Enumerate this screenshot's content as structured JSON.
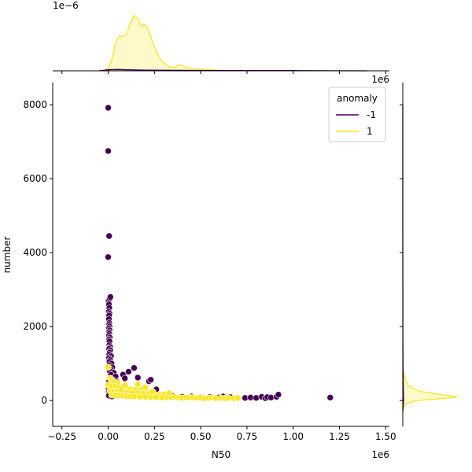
{
  "chart_data": {
    "type": "scatter",
    "xlabel": "N50",
    "ylabel": "number",
    "x_multiplier_label": "1e6",
    "marginal_top_multiplier_label": "1e−6",
    "marginal_right_multiplier_label": "1e6",
    "xlim": [
      -0.3,
      1.52
    ],
    "ylim": [
      -700,
      8600
    ],
    "x_ticks": [
      -0.25,
      0.0,
      0.25,
      0.5,
      0.75,
      1.0,
      1.25,
      1.5
    ],
    "x_tick_labels": [
      "−0.25",
      "0.00",
      "0.25",
      "0.50",
      "0.75",
      "1.00",
      "1.25",
      "1.50"
    ],
    "y_ticks": [
      0,
      2000,
      4000,
      6000,
      8000
    ],
    "y_tick_labels": [
      "0",
      "2000",
      "4000",
      "6000",
      "8000"
    ],
    "grid": false,
    "legend": {
      "title": "anomaly",
      "placement": "top-right"
    },
    "series": [
      {
        "name": "-1",
        "color": "#440154",
        "points": [
          [
            0.0,
            7920
          ],
          [
            0.0,
            6750
          ],
          [
            0.005,
            4450
          ],
          [
            0.0,
            3880
          ],
          [
            0.002,
            2700
          ],
          [
            0.008,
            2750
          ],
          [
            0.012,
            2800
          ],
          [
            0.004,
            2600
          ],
          [
            0.006,
            2500
          ],
          [
            0.003,
            2400
          ],
          [
            0.007,
            2350
          ],
          [
            0.005,
            2300
          ],
          [
            0.004,
            2200
          ],
          [
            0.006,
            2100
          ],
          [
            0.005,
            2050
          ],
          [
            0.007,
            2000
          ],
          [
            0.004,
            1950
          ],
          [
            0.008,
            1900
          ],
          [
            0.005,
            1850
          ],
          [
            0.006,
            1800
          ],
          [
            0.004,
            1750
          ],
          [
            0.009,
            1700
          ],
          [
            0.005,
            1650
          ],
          [
            0.007,
            1600
          ],
          [
            0.006,
            1500
          ],
          [
            0.01,
            1450
          ],
          [
            0.005,
            1400
          ],
          [
            0.012,
            1350
          ],
          [
            0.008,
            1300
          ],
          [
            0.006,
            1250
          ],
          [
            0.015,
            1200
          ],
          [
            0.004,
            1150
          ],
          [
            0.01,
            1100
          ],
          [
            0.007,
            1050
          ],
          [
            0.018,
            1000
          ],
          [
            0.005,
            950
          ],
          [
            0.022,
            900
          ],
          [
            0.012,
            850
          ],
          [
            0.008,
            800
          ],
          [
            0.03,
            750
          ],
          [
            0.015,
            700
          ],
          [
            0.04,
            650
          ],
          [
            0.01,
            600
          ],
          [
            0.025,
            560
          ],
          [
            0.005,
            520
          ],
          [
            0.05,
            500
          ],
          [
            0.018,
            460
          ],
          [
            0.008,
            420
          ],
          [
            0.035,
            400
          ],
          [
            0.012,
            370
          ],
          [
            0.06,
            350
          ],
          [
            0.002,
            300
          ],
          [
            0.02,
            280
          ],
          [
            0.003,
            240
          ],
          [
            0.015,
            210
          ],
          [
            0.005,
            180
          ],
          [
            0.01,
            150
          ],
          [
            0.004,
            130
          ],
          [
            0.02,
            110
          ],
          [
            0.14,
            880
          ],
          [
            0.11,
            780
          ],
          [
            0.22,
            520
          ],
          [
            0.23,
            560
          ],
          [
            0.08,
            700
          ],
          [
            0.16,
            620
          ],
          [
            0.09,
            600
          ],
          [
            0.26,
            300
          ],
          [
            0.3,
            150
          ],
          [
            0.35,
            120
          ],
          [
            0.4,
            100
          ],
          [
            0.45,
            110
          ],
          [
            0.5,
            90
          ],
          [
            0.55,
            100
          ],
          [
            0.6,
            80
          ],
          [
            0.62,
            110
          ],
          [
            0.66,
            90
          ],
          [
            0.7,
            80
          ],
          [
            0.74,
            70
          ],
          [
            0.77,
            80
          ],
          [
            0.8,
            70
          ],
          [
            0.83,
            100
          ],
          [
            0.85,
            60
          ],
          [
            0.86,
            90
          ],
          [
            0.88,
            80
          ],
          [
            0.91,
            100
          ],
          [
            0.92,
            160
          ],
          [
            1.2,
            80
          ]
        ]
      },
      {
        "name": "1",
        "color": "#fde725",
        "points": [
          [
            0.0,
            900
          ],
          [
            0.01,
            600
          ],
          [
            0.02,
            550
          ],
          [
            0.03,
            500
          ],
          [
            0.05,
            480
          ],
          [
            0.0,
            420
          ],
          [
            0.02,
            400
          ],
          [
            0.04,
            380
          ],
          [
            0.06,
            360
          ],
          [
            0.08,
            340
          ],
          [
            0.1,
            320
          ],
          [
            0.12,
            300
          ],
          [
            0.15,
            300
          ],
          [
            0.18,
            290
          ],
          [
            0.2,
            280
          ],
          [
            0.01,
            260
          ],
          [
            0.03,
            250
          ],
          [
            0.05,
            240
          ],
          [
            0.07,
            230
          ],
          [
            0.09,
            220
          ],
          [
            0.11,
            210
          ],
          [
            0.13,
            200
          ],
          [
            0.16,
            200
          ],
          [
            0.19,
            190
          ],
          [
            0.22,
            180
          ],
          [
            0.25,
            170
          ],
          [
            0.28,
            160
          ],
          [
            0.3,
            160
          ],
          [
            0.02,
            150
          ],
          [
            0.04,
            140
          ],
          [
            0.06,
            130
          ],
          [
            0.08,
            130
          ],
          [
            0.1,
            120
          ],
          [
            0.12,
            110
          ],
          [
            0.14,
            110
          ],
          [
            0.17,
            100
          ],
          [
            0.2,
            100
          ],
          [
            0.23,
            90
          ],
          [
            0.26,
            90
          ],
          [
            0.29,
            80
          ],
          [
            0.32,
            80
          ],
          [
            0.34,
            90
          ],
          [
            0.36,
            100
          ],
          [
            0.38,
            80
          ],
          [
            0.4,
            70
          ],
          [
            0.42,
            80
          ],
          [
            0.44,
            90
          ],
          [
            0.46,
            80
          ],
          [
            0.48,
            70
          ],
          [
            0.5,
            80
          ],
          [
            0.52,
            60
          ],
          [
            0.54,
            70
          ],
          [
            0.56,
            80
          ],
          [
            0.58,
            60
          ],
          [
            0.61,
            70
          ],
          [
            0.63,
            60
          ],
          [
            0.65,
            70
          ],
          [
            0.68,
            60
          ],
          [
            0.7,
            70
          ],
          [
            0.09,
            420
          ],
          [
            0.16,
            440
          ],
          [
            0.2,
            360
          ],
          [
            0.07,
            290
          ],
          [
            0.24,
            240
          ],
          [
            0.33,
            200
          ]
        ]
      }
    ],
    "marginal_top": {
      "series": [
        {
          "name": "1",
          "color": "#fde725",
          "fill": true,
          "x": [
            -0.02,
            0.0,
            0.02,
            0.04,
            0.06,
            0.08,
            0.1,
            0.12,
            0.14,
            0.16,
            0.18,
            0.2,
            0.22,
            0.24,
            0.26,
            0.28,
            0.3,
            0.33,
            0.36,
            0.38,
            0.4,
            0.42,
            0.45,
            0.5,
            0.55,
            0.6,
            0.65
          ],
          "density": [
            0.0,
            0.05,
            0.2,
            0.5,
            0.62,
            0.6,
            0.65,
            0.85,
            0.98,
            0.92,
            0.78,
            0.82,
            0.7,
            0.5,
            0.35,
            0.22,
            0.14,
            0.07,
            0.06,
            0.1,
            0.1,
            0.06,
            0.04,
            0.03,
            0.02,
            0.01,
            0.0
          ]
        },
        {
          "name": "-1",
          "color": "#440154",
          "fill": true,
          "x": [
            -0.05,
            0.0,
            0.05,
            0.1,
            0.2,
            0.4,
            0.6,
            0.8,
            1.0,
            1.2,
            1.4
          ],
          "density": [
            0.0,
            0.02,
            0.025,
            0.02,
            0.012,
            0.008,
            0.006,
            0.005,
            0.004,
            0.002,
            0.0
          ]
        }
      ]
    },
    "marginal_right": {
      "series": [
        {
          "name": "1",
          "color": "#fde725",
          "fill": true,
          "y": [
            -300,
            -100,
            0,
            50,
            100,
            150,
            250,
            400,
            600,
            800,
            1000
          ],
          "density": [
            0.0,
            0.04,
            0.25,
            0.7,
            1.0,
            0.75,
            0.3,
            0.1,
            0.04,
            0.01,
            0.0
          ]
        },
        {
          "name": "-1",
          "color": "#440154",
          "fill": true,
          "y": [
            -300,
            0,
            200,
            500,
            1000,
            2000,
            3000,
            4500,
            6000,
            8000
          ],
          "density": [
            0.0,
            0.015,
            0.012,
            0.008,
            0.004,
            0.002,
            0.001,
            0.0005,
            0.0003,
            0.0
          ]
        }
      ]
    }
  }
}
